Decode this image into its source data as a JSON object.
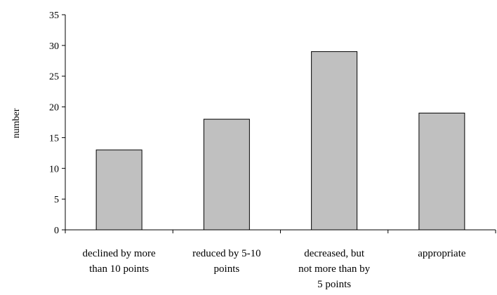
{
  "chart_data": {
    "type": "bar",
    "title": "",
    "xlabel": "",
    "ylabel": "number",
    "ylim": [
      0,
      35
    ],
    "yticks": [
      0,
      5,
      10,
      15,
      20,
      25,
      30,
      35
    ],
    "categories": [
      [
        "declined by more",
        "than 10 points"
      ],
      [
        "reduced by 5-10",
        "points"
      ],
      [
        "decreased, but",
        "not more than by",
        "5 points"
      ],
      [
        "appropriate"
      ]
    ],
    "values": [
      13,
      18,
      29,
      19
    ],
    "grid": false,
    "legend": "none",
    "colors": {
      "bar_fill": "#c0c0c0",
      "bar_stroke": "#000000",
      "axis": "#000000"
    }
  }
}
